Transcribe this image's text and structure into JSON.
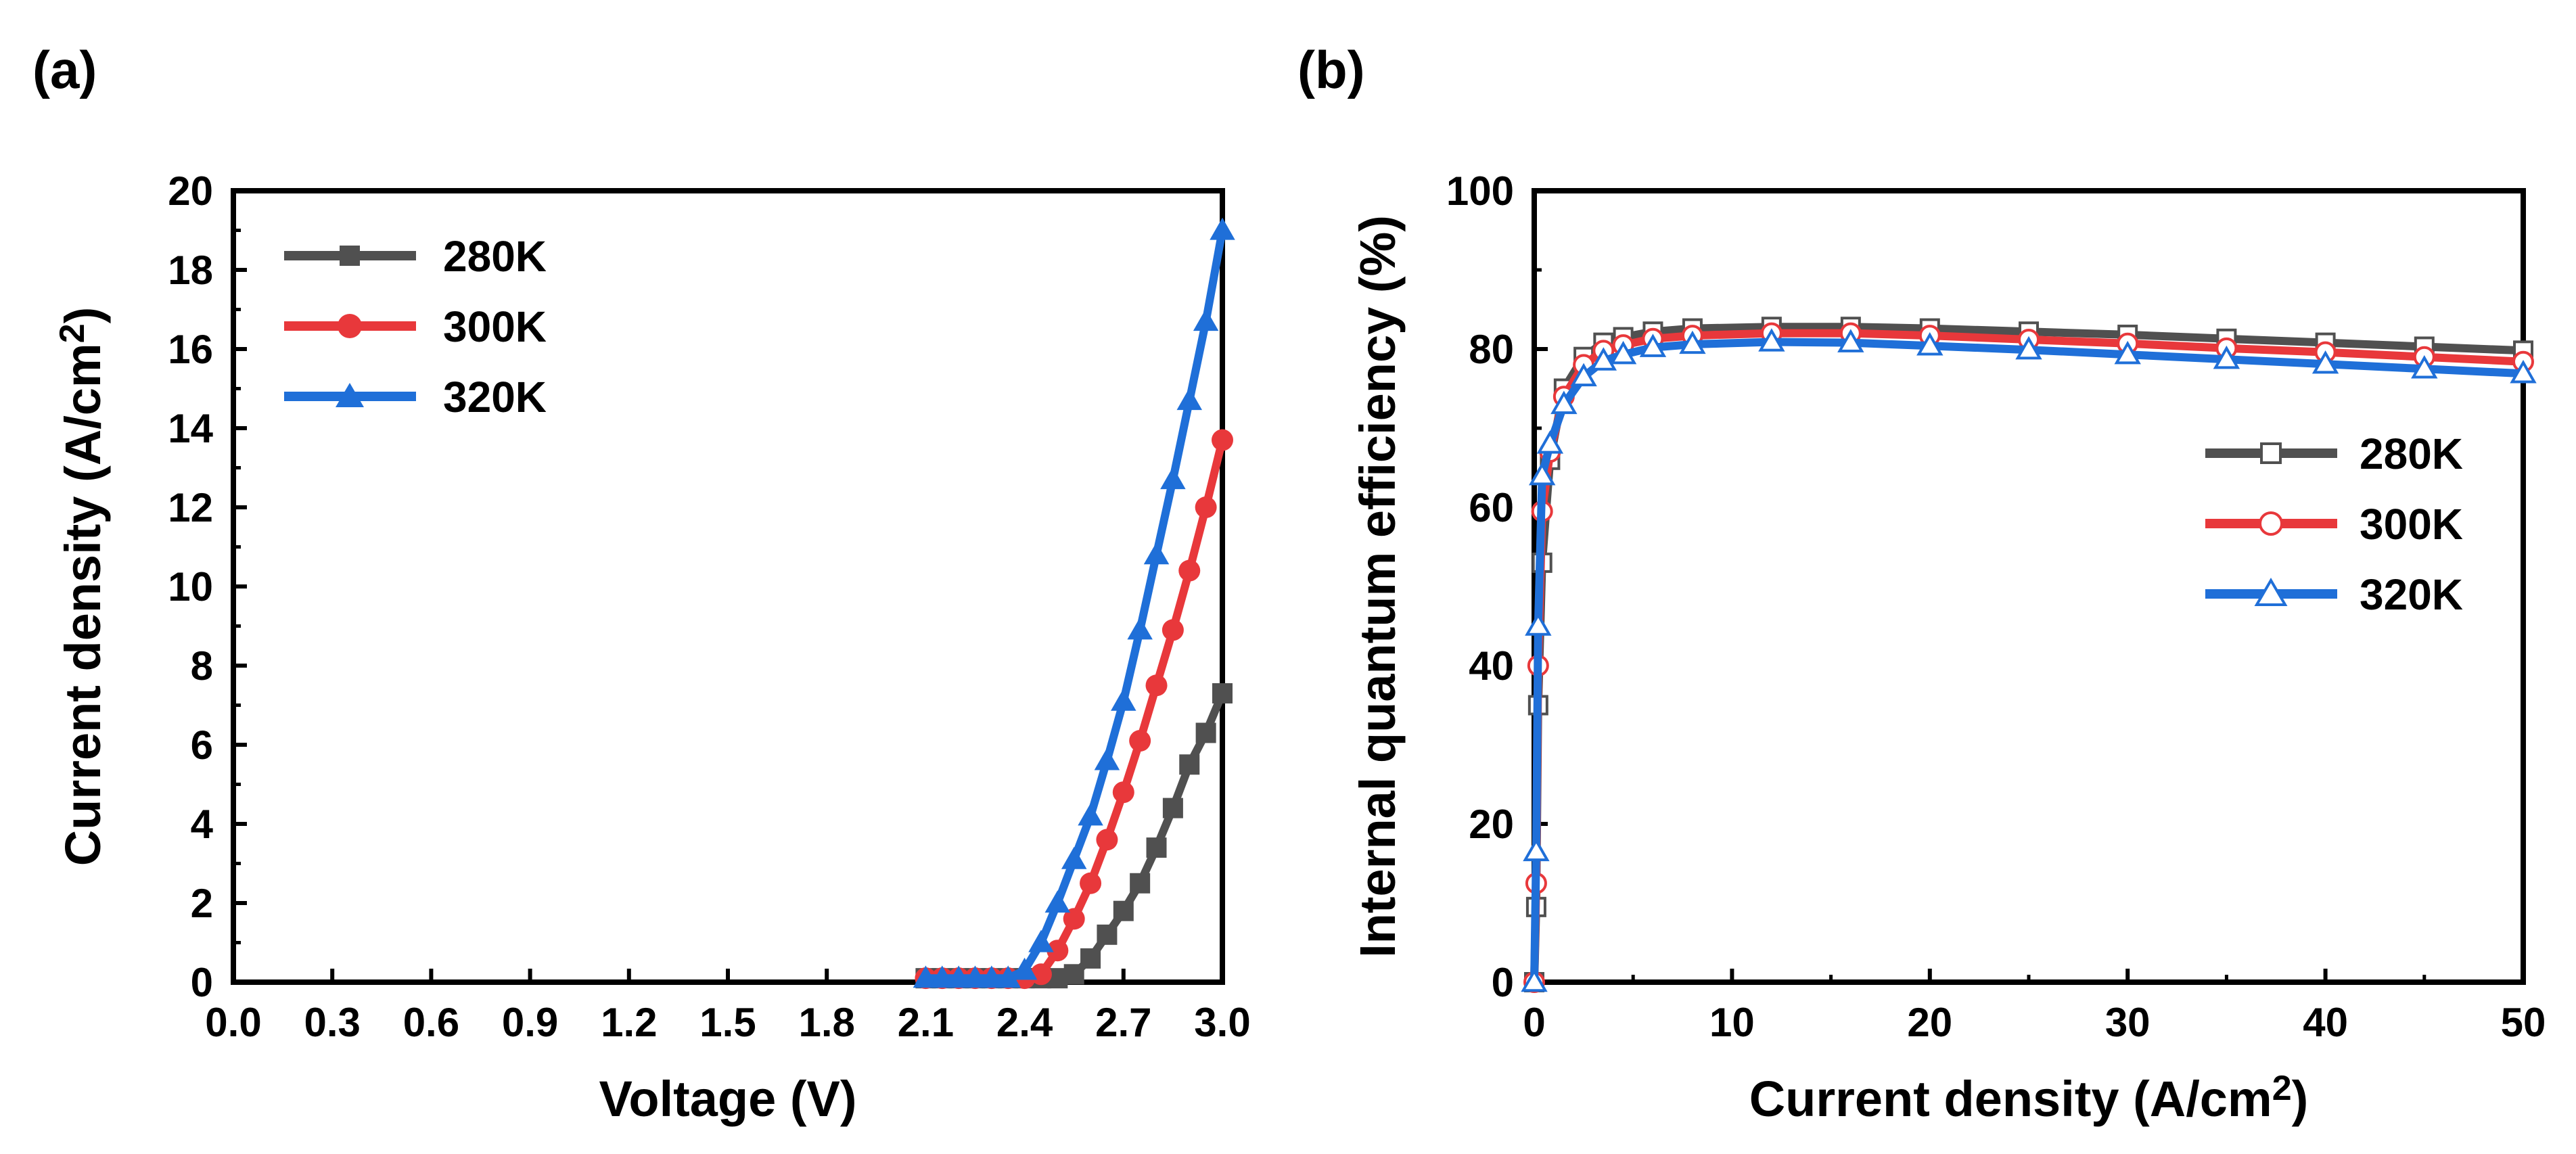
{
  "chart_data": [
    {
      "panel_label": "(a)",
      "type": "line",
      "xlabel": "Voltage (V)",
      "ylabel_main": "Current density (A/cm",
      "ylabel_sup": "2",
      "ylabel_tail": ")",
      "xlim": [
        0.0,
        3.0
      ],
      "ylim": [
        0,
        20
      ],
      "x_ticks": [
        "0.0",
        "0.3",
        "0.6",
        "0.9",
        "1.2",
        "1.5",
        "1.8",
        "2.1",
        "2.4",
        "2.7",
        "3.0"
      ],
      "y_ticks": [
        "0",
        "2",
        "4",
        "6",
        "8",
        "10",
        "12",
        "14",
        "16",
        "18",
        "20"
      ],
      "legend_position": "top-left",
      "x": [
        2.1,
        2.15,
        2.2,
        2.25,
        2.3,
        2.35,
        2.4,
        2.45,
        2.5,
        2.55,
        2.6,
        2.65,
        2.7,
        2.75,
        2.8,
        2.85,
        2.9,
        2.95,
        3.0
      ],
      "series": [
        {
          "name": "280K",
          "color": "#505050",
          "marker": "square-filled",
          "values": [
            0.1,
            0.1,
            0.1,
            0.1,
            0.1,
            0.1,
            0.1,
            0.1,
            0.1,
            0.2,
            0.6,
            1.2,
            1.8,
            2.5,
            3.4,
            4.4,
            5.5,
            6.3,
            7.3
          ]
        },
        {
          "name": "300K",
          "color": "#e8383b",
          "marker": "circle-filled",
          "values": [
            0.1,
            0.1,
            0.1,
            0.1,
            0.1,
            0.1,
            0.1,
            0.2,
            0.8,
            1.6,
            2.5,
            3.6,
            4.8,
            6.1,
            7.5,
            8.9,
            10.4,
            12.0,
            13.7
          ]
        },
        {
          "name": "320K",
          "color": "#1f6fd8",
          "marker": "triangle-filled",
          "values": [
            0.1,
            0.1,
            0.1,
            0.1,
            0.1,
            0.1,
            0.3,
            1.0,
            2.0,
            3.1,
            4.2,
            5.6,
            7.1,
            8.9,
            10.8,
            12.7,
            14.7,
            16.7,
            19.0
          ]
        }
      ]
    },
    {
      "panel_label": "(b)",
      "type": "line",
      "xlabel_main": "Current density (A/cm",
      "xlabel_sup": "2",
      "xlabel_tail": ")",
      "ylabel": "Internal quantum efficiency (%)",
      "xlim": [
        0,
        50
      ],
      "ylim": [
        0,
        100
      ],
      "x_ticks": [
        "0",
        "10",
        "20",
        "30",
        "40",
        "50"
      ],
      "y_ticks": [
        "0",
        "20",
        "40",
        "60",
        "80",
        "100"
      ],
      "legend_position": "middle-right",
      "series": [
        {
          "name": "280K",
          "color": "#505050",
          "marker": "square-open",
          "x": [
            0,
            0.1,
            0.2,
            0.4,
            0.8,
            1.5,
            2.5,
            3.5,
            4.5,
            6,
            8,
            12,
            16,
            20,
            25,
            30,
            35,
            40,
            45,
            50
          ],
          "y": [
            0,
            9.5,
            35,
            53,
            66,
            75,
            79,
            80.8,
            81.5,
            82.2,
            82.6,
            82.8,
            82.8,
            82.6,
            82.2,
            81.8,
            81.3,
            80.8,
            80.3,
            79.8
          ]
        },
        {
          "name": "300K",
          "color": "#e8383b",
          "marker": "circle-open",
          "x": [
            0,
            0.1,
            0.2,
            0.4,
            0.8,
            1.5,
            2.5,
            3.5,
            4.5,
            6,
            8,
            12,
            16,
            20,
            25,
            30,
            35,
            40,
            45,
            50
          ],
          "y": [
            0,
            12.5,
            40,
            59.5,
            67,
            74,
            78,
            79.8,
            80.5,
            81.3,
            81.7,
            82,
            82,
            81.7,
            81.2,
            80.7,
            80.1,
            79.6,
            79,
            78.4
          ]
        },
        {
          "name": "320K",
          "color": "#1f6fd8",
          "marker": "triangle-open",
          "x": [
            0,
            0.1,
            0.2,
            0.4,
            0.8,
            1.5,
            2.5,
            3.5,
            4.5,
            6,
            8,
            12,
            16,
            20,
            25,
            30,
            35,
            40,
            45,
            50
          ],
          "y": [
            0,
            16.5,
            45,
            64,
            68,
            73,
            76.5,
            78.5,
            79.3,
            80.2,
            80.6,
            80.9,
            80.8,
            80.4,
            79.9,
            79.3,
            78.7,
            78.1,
            77.5,
            76.9
          ]
        }
      ]
    }
  ]
}
